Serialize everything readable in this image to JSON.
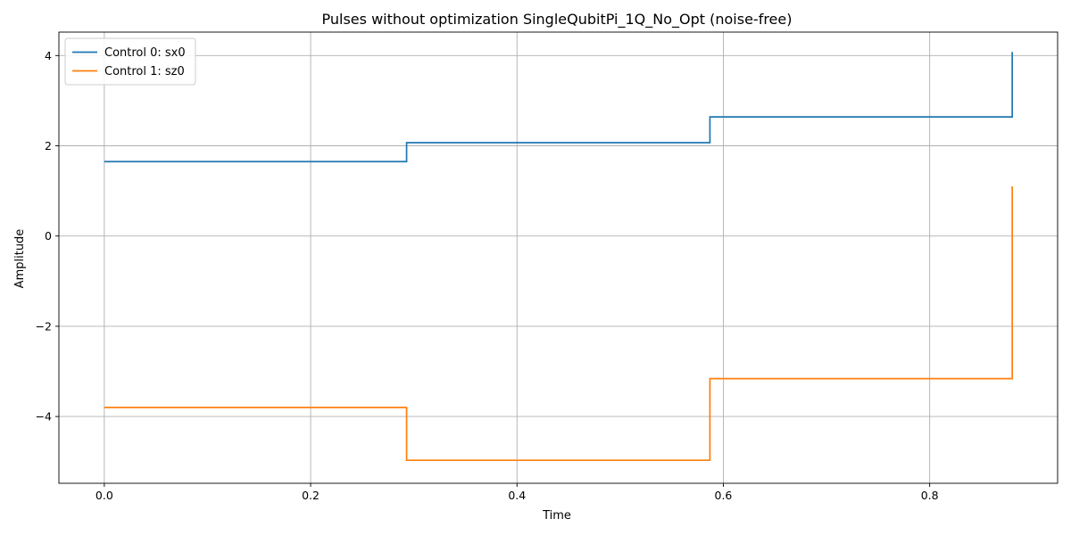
{
  "chart_data": {
    "type": "line",
    "step": "post",
    "title": "Pulses without optimization SingleQubitPi_1Q_No_Opt (noise-free)",
    "xlabel": "Time",
    "ylabel": "Amplitude",
    "xlim": [
      -0.044,
      0.924
    ],
    "ylim": [
      -5.48,
      4.52
    ],
    "xticks": [
      0.0,
      0.2,
      0.4,
      0.6,
      0.8
    ],
    "xtick_labels": [
      "0.0",
      "0.2",
      "0.4",
      "0.6",
      "0.8"
    ],
    "yticks": [
      -4,
      -2,
      0,
      2,
      4
    ],
    "ytick_labels": [
      "−4",
      "−2",
      "0",
      "2",
      "4"
    ],
    "grid": true,
    "legend_position": "upper left",
    "series": [
      {
        "name": "Control 0: sx0",
        "color": "#1f77b4",
        "x": [
          0.0,
          0.293,
          0.587,
          0.88
        ],
        "values": [
          1.65,
          2.07,
          2.64,
          4.08
        ]
      },
      {
        "name": "Control 1: sz0",
        "color": "#ff7f0e",
        "x": [
          0.0,
          0.293,
          0.587,
          0.88
        ],
        "values": [
          -3.8,
          -4.97,
          -3.16,
          1.1
        ]
      }
    ]
  }
}
